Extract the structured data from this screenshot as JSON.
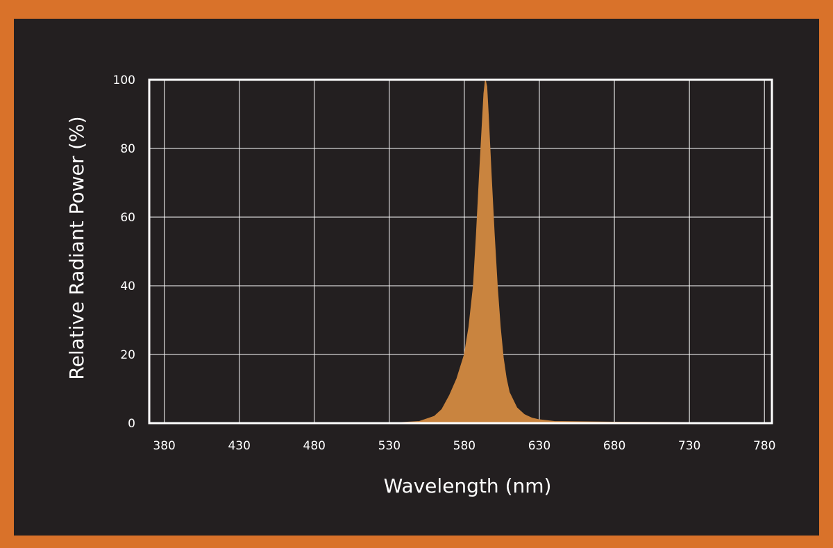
{
  "colors": {
    "border": "#d9722a",
    "background": "#231f20",
    "grid": "#ffffff",
    "fill": "#c9843f"
  },
  "chart_data": {
    "type": "area",
    "title": "",
    "xlabel": "Wavelength (nm)",
    "ylabel": "Relative Radiant Power (%)",
    "xlim": [
      370,
      785
    ],
    "ylim": [
      0,
      100
    ],
    "xticks": [
      380,
      430,
      480,
      530,
      580,
      630,
      680,
      730,
      780
    ],
    "yticks": [
      0,
      20,
      40,
      60,
      80,
      100
    ],
    "grid": true,
    "legend": "none",
    "series": [
      {
        "x": [
          370,
          380,
          430,
          480,
          530,
          550,
          560,
          565,
          570,
          575,
          580,
          583,
          586,
          588,
          590,
          592,
          593,
          594,
          595,
          596,
          598,
          600,
          602,
          604,
          606,
          608,
          610,
          615,
          620,
          625,
          630,
          640,
          680,
          730,
          780,
          785
        ],
        "y": [
          0,
          0,
          0,
          0,
          0,
          0.5,
          2,
          4,
          8,
          13,
          20,
          28,
          40,
          55,
          72,
          88,
          96,
          100,
          98,
          90,
          72,
          55,
          40,
          28,
          19,
          13,
          9,
          4.5,
          2.5,
          1.5,
          1,
          0.5,
          0.3,
          0.2,
          0.2,
          0.2
        ]
      }
    ]
  }
}
